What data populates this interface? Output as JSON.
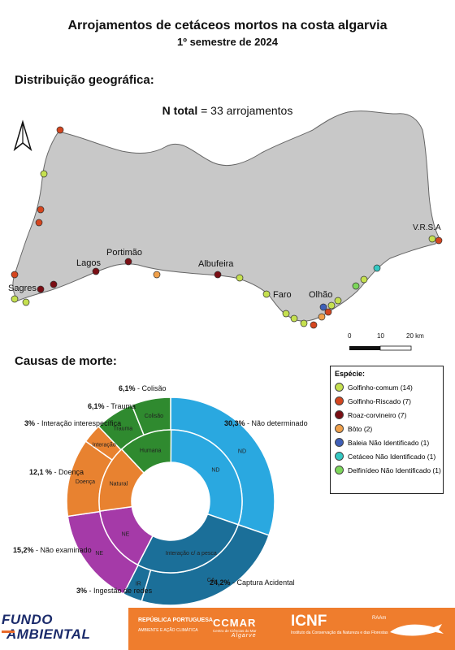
{
  "header": {
    "title": "Arrojamentos de cetáceos mortos na costa algarvia",
    "subtitle": "1º semestre de 2024"
  },
  "map_section": {
    "heading": "Distribuição geográfica:",
    "ntotal_label": "N total",
    "ntotal_value": "= 33 arrojamentos",
    "places": [
      "Sagres",
      "Lagos",
      "Portimão",
      "Albufeira",
      "Faro",
      "Olhão",
      "V.R.S.A"
    ],
    "scale_labels": [
      "0",
      "10",
      "20 km"
    ],
    "land_color": "#c8c8c8"
  },
  "legend": {
    "title": "Espécie:",
    "items": [
      {
        "label": "Golfinho-comum (14)",
        "color": "#c5e04f"
      },
      {
        "label": "Golfinho-Riscado (7)",
        "color": "#d4461f"
      },
      {
        "label": "Roaz-corvineiro (7)",
        "color": "#7a0e14"
      },
      {
        "label": "Bôto (2)",
        "color": "#f0a04a"
      },
      {
        "label": "Baleia Não Identificado (1)",
        "color": "#3f5fb8"
      },
      {
        "label": "Cetáceo Não Identificado (1)",
        "color": "#34c8c2"
      },
      {
        "label": "Delfinídeo Não Identificado (1)",
        "color": "#7cd65a"
      }
    ]
  },
  "causes_section": {
    "heading": "Causas de morte:"
  },
  "chart_data": {
    "type": "sunburst",
    "total": 33,
    "groups": [
      {
        "name": "ND",
        "label": "ND",
        "value": 30.3,
        "color": "#2aa8e0"
      },
      {
        "name": "Interação c/ a pesca",
        "label": "Interação c/ a pesca",
        "value": 27.3,
        "color": "#1b6f99"
      },
      {
        "name": "NE",
        "label": "NE",
        "value": 15.2,
        "color": "#a53aa8"
      },
      {
        "name": "Natural",
        "label": "Natural",
        "value": 15.2,
        "color": "#e88230"
      },
      {
        "name": "Humana",
        "label": "Humana",
        "value": 12.1,
        "color": "#2f8a2f"
      }
    ],
    "slices": [
      {
        "pct": "30,3%",
        "name": "Não determinado",
        "code": "ND",
        "value": 30.3,
        "group": "ND",
        "color": "#2aa8e0"
      },
      {
        "pct": "24,2%",
        "name": "Captura Acidental",
        "code": "CA",
        "value": 24.2,
        "group": "Interação c/ a pesca",
        "color": "#1b6f99"
      },
      {
        "pct": "3%",
        "name": "Ingestão de redes",
        "code": "IR",
        "value": 3.0,
        "group": "Interação c/ a pesca",
        "color": "#1b6f99"
      },
      {
        "pct": "15,2%",
        "name": "Não examinado",
        "code": "NE",
        "value": 15.2,
        "group": "NE",
        "color": "#a53aa8"
      },
      {
        "pct": "12,1 %",
        "name": "Doença",
        "code": "Doença",
        "value": 12.1,
        "group": "Natural",
        "color": "#e88230"
      },
      {
        "pct": "3%",
        "name": "Interação interespecífica",
        "code": "Interação",
        "value": 3.0,
        "group": "Natural",
        "color": "#e88230"
      },
      {
        "pct": "6,1%",
        "name": "Trauma",
        "code": "Trauma",
        "value": 6.1,
        "group": "Humana",
        "color": "#2f8a2f"
      },
      {
        "pct": "6,1%",
        "name": "Colisão",
        "code": "Colisão",
        "value": 6.1,
        "group": "Humana",
        "color": "#2f8a2f"
      }
    ]
  },
  "footer": {
    "fundo_line1": "FUNDO",
    "fundo_line2": "AMBIENTAL",
    "republica": "REPÚBLICA PORTUGUESA",
    "republica_sub": "AMBIENTE E AÇÃO CLIMÁTICA",
    "ccmar": "CCMAR",
    "ccmar_sub": "Centro de Ciências do Mar",
    "ccmar_algarve": "Algarve",
    "icnf": "ICNF",
    "icnf_sub": "Instituto da Conservação da Natureza e das Florestas",
    "raam": "RAAm"
  }
}
